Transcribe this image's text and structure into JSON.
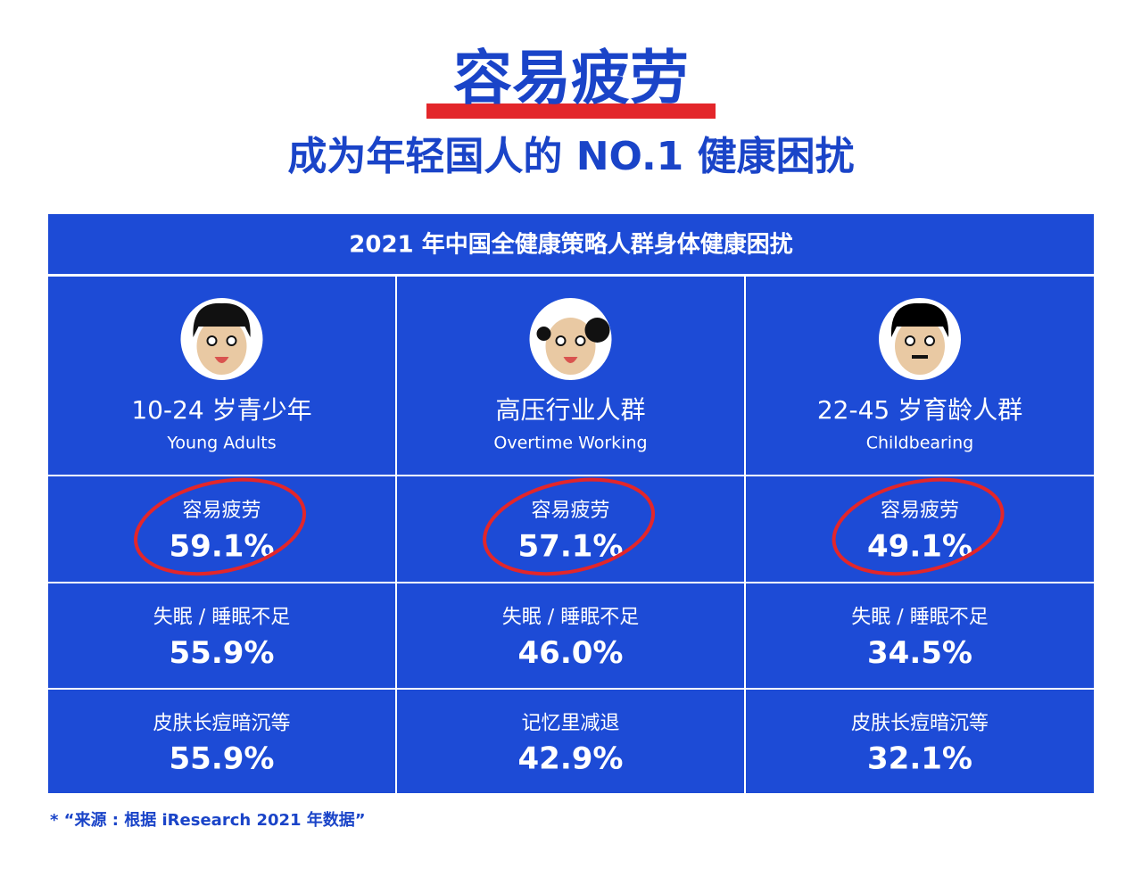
{
  "header": {
    "title": "容易疲劳",
    "subtitle": "成为年轻国人的 NO.1 健康困扰"
  },
  "table": {
    "title": "2021 年中国全健康策略人群身体健康困扰",
    "columns": [
      {
        "zh": "10-24 岁青少年",
        "en": "Young Adults"
      },
      {
        "zh": "高压行业人群",
        "en": "Overtime Working"
      },
      {
        "zh": "22-45 岁育龄人群",
        "en": "Childbearing"
      }
    ],
    "rows": [
      [
        {
          "label": "容易疲劳",
          "value": "59.1%"
        },
        {
          "label": "容易疲劳",
          "value": "57.1%"
        },
        {
          "label": "容易疲劳",
          "value": "49.1%"
        }
      ],
      [
        {
          "label": "失眠 / 睡眠不足",
          "value": "55.9%"
        },
        {
          "label": "失眠 / 睡眠不足",
          "value": "46.0%"
        },
        {
          "label": "失眠 / 睡眠不足",
          "value": "34.5%"
        }
      ],
      [
        {
          "label": "皮肤长痘暗沉等",
          "value": "55.9%"
        },
        {
          "label": "记忆里减退",
          "value": "42.9%"
        },
        {
          "label": "皮肤长痘暗沉等",
          "value": "32.1%"
        }
      ]
    ]
  },
  "footnote": "* “来源 : 根据 iResearch 2021 年数据”"
}
